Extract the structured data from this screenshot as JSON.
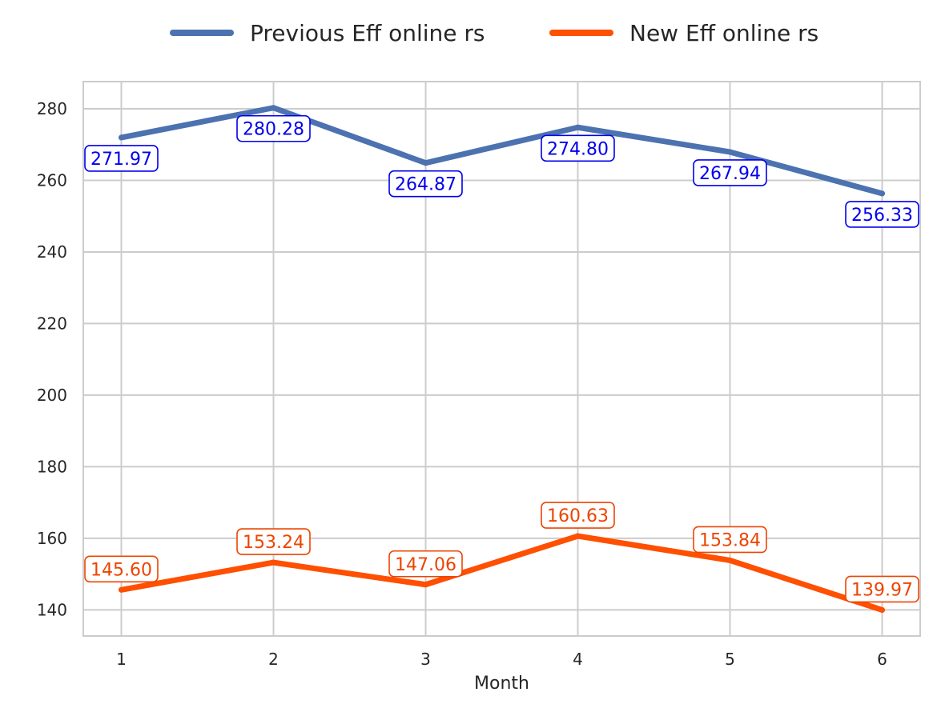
{
  "chart_data": {
    "type": "line",
    "title": "",
    "xlabel": "Month",
    "ylabel": "",
    "x": [
      1,
      2,
      3,
      4,
      5,
      6
    ],
    "x_tick_labels": [
      "1",
      "2",
      "3",
      "4",
      "5",
      "6"
    ],
    "y_ticks": [
      140,
      160,
      180,
      200,
      220,
      240,
      260,
      280
    ],
    "y_tick_labels": [
      "140",
      "160",
      "180",
      "200",
      "220",
      "240",
      "260",
      "280"
    ],
    "xlim": [
      0.75,
      6.25
    ],
    "ylim": [
      132.7,
      287.6
    ],
    "grid": true,
    "legend_position": "top-center (above plot)",
    "series": [
      {
        "name": "Previous Eff online rs",
        "color": "#4c72b0",
        "label_color": "#0000ee",
        "label_placement": "below",
        "values": [
          271.97,
          280.28,
          264.87,
          274.8,
          267.94,
          256.33
        ],
        "data_labels": [
          "271.97",
          "280.28",
          "264.87",
          "274.80",
          "267.94",
          "256.33"
        ]
      },
      {
        "name": "New Eff online rs",
        "color": "#ff4f00",
        "label_color": "#ee4400",
        "label_placement": "above",
        "values": [
          145.6,
          153.24,
          147.06,
          160.63,
          153.84,
          139.97
        ],
        "data_labels": [
          "145.60",
          "153.24",
          "147.06",
          "160.63",
          "153.84",
          "139.97"
        ]
      }
    ]
  }
}
